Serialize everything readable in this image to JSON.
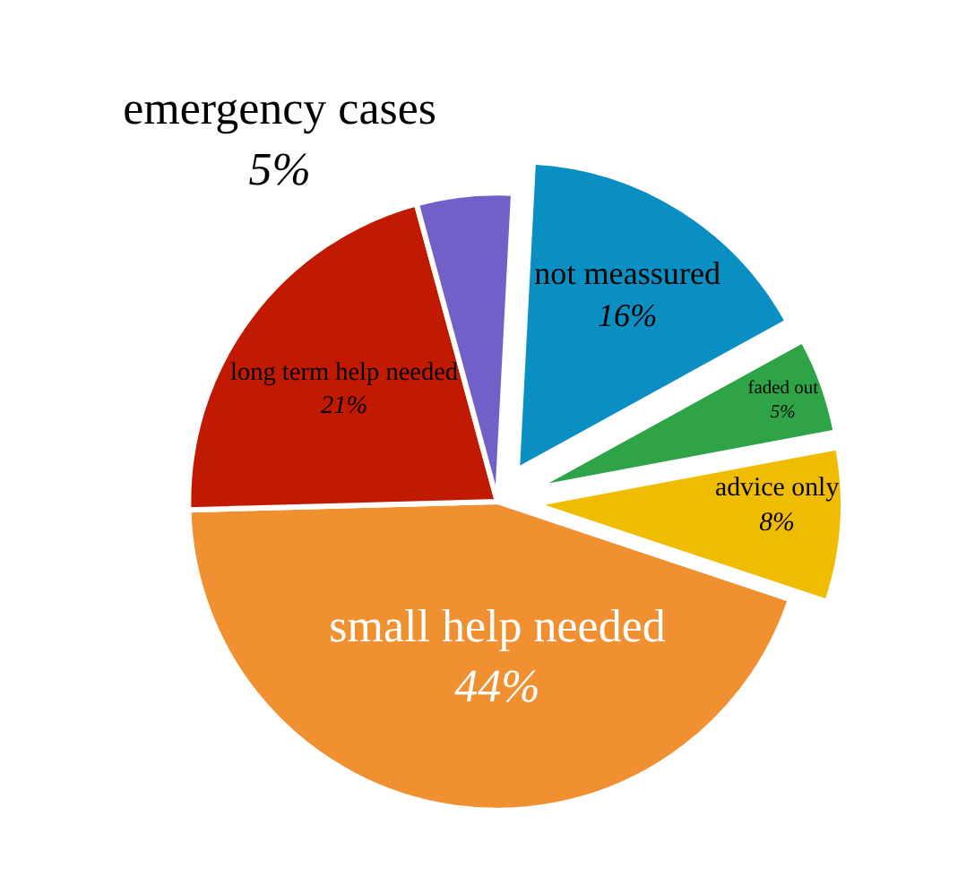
{
  "chart_data": {
    "type": "pie",
    "categories": [
      "not meassured",
      "faded out",
      "advice only",
      "small help needed",
      "long term help needed",
      "emergency cases"
    ],
    "values": [
      16,
      5,
      8,
      44,
      21,
      5
    ],
    "value_labels": [
      "16%",
      "5%",
      "8%",
      "44%",
      "21%",
      "5%"
    ],
    "colors": [
      "#0a8fc2",
      "#2ea447",
      "#f0bc00",
      "#f09030",
      "#c21a00",
      "#7060c8"
    ],
    "legend": false
  }
}
